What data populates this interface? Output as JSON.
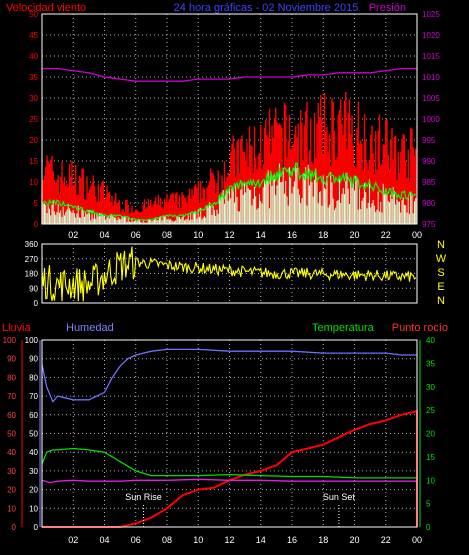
{
  "colors": {
    "background": "#000000",
    "frame": "#ffffff",
    "grid": "#b0b0b0",
    "wind_gust": "#ff0000",
    "wind_avg": "#00ff00",
    "wind_min": "#d8ffd8",
    "pressure": "#d000d0",
    "direction": "#ffff00",
    "rain": "#ff0000",
    "humidity": "#7070ff",
    "temperature": "#00e000",
    "dewpoint": "#e020e0",
    "humidity_axis": "#8080ff",
    "temp_axis": "#00e000",
    "dir_letters": "#ffff00",
    "markers": "#ffffff"
  },
  "header": {
    "wind_title": "Velocidad viento",
    "center_title": "24 hora gráficas - 02 Noviembre 2015",
    "pressure_title": "Presión"
  },
  "bottom_header": {
    "rain": "Lluvia",
    "humidity": "Humedad",
    "temperature": "Temperatura",
    "dewpoint": "Punto rocío"
  },
  "direction_letters": [
    "N",
    "W",
    "S",
    "E",
    "N"
  ],
  "markers": {
    "sunrise": "Sun Rise",
    "sunset": "Sun Set"
  },
  "chart_data": [
    {
      "type": "line",
      "x_ticks": [
        "02",
        "04",
        "06",
        "08",
        "10",
        "12",
        "14",
        "16",
        "18",
        "20",
        "22",
        "00"
      ],
      "left_axis": {
        "ticks": [
          "0",
          "5",
          "10",
          "15",
          "20",
          "25",
          "30",
          "35",
          "40",
          "45",
          "50"
        ],
        "ylim": [
          0,
          50
        ]
      },
      "right_axis": {
        "ticks": [
          "975",
          "980",
          "985",
          "990",
          "995",
          "1000",
          "1005",
          "1010",
          "1015",
          "1020",
          "1025"
        ],
        "ylim": [
          975,
          1025
        ]
      },
      "grid": true,
      "series": [
        {
          "key": "gust",
          "x": [
            0,
            1,
            2,
            3,
            4,
            5,
            6,
            7,
            8,
            9,
            10,
            11,
            12,
            13,
            14,
            15,
            16,
            17,
            18,
            19,
            20,
            21,
            22,
            23,
            24
          ],
          "values": [
            15,
            12,
            12,
            10,
            8,
            5,
            4,
            5,
            6,
            6,
            8,
            11,
            16,
            18,
            20,
            22,
            23,
            23,
            24,
            25,
            24,
            22,
            20,
            18,
            18
          ]
        },
        {
          "key": "average",
          "x": [
            0,
            1,
            2,
            3,
            4,
            5,
            6,
            7,
            8,
            9,
            10,
            11,
            12,
            13,
            14,
            15,
            16,
            17,
            18,
            19,
            20,
            21,
            22,
            23,
            24
          ],
          "values": [
            5,
            5,
            4,
            3,
            2,
            2,
            1,
            1,
            2,
            2,
            3,
            5,
            8,
            10,
            10,
            12,
            13,
            12,
            11,
            11,
            10,
            9,
            8,
            7,
            7
          ]
        },
        {
          "key": "pressure",
          "x": [
            0,
            1,
            2,
            3,
            4,
            5,
            6,
            7,
            8,
            9,
            10,
            11,
            12,
            13,
            14,
            15,
            16,
            17,
            18,
            19,
            20,
            21,
            22,
            23,
            24
          ],
          "values": [
            1012,
            1012,
            1011.5,
            1011,
            1010,
            1009.5,
            1009,
            1009,
            1009,
            1009,
            1009.5,
            1009.5,
            1009.5,
            1010,
            1010,
            1010,
            1010,
            1010.5,
            1010.5,
            1011,
            1011,
            1011,
            1011.5,
            1012,
            1012
          ]
        }
      ]
    },
    {
      "type": "scatter",
      "x_ticks": [
        "02",
        "04",
        "06",
        "08",
        "10",
        "12",
        "14",
        "16",
        "18",
        "20",
        "22",
        "00"
      ],
      "y_ticks": [
        "0",
        "90",
        "180",
        "270",
        "360"
      ],
      "ylim": [
        0,
        360
      ],
      "grid": true,
      "series": [
        {
          "key": "direction",
          "x": [
            0,
            1,
            2,
            3,
            4,
            5,
            6,
            7,
            8,
            9,
            10,
            11,
            12,
            13,
            14,
            15,
            16,
            17,
            18,
            19,
            20,
            21,
            22,
            23,
            24
          ],
          "values": [
            140,
            110,
            120,
            110,
            170,
            230,
            250,
            240,
            230,
            220,
            215,
            205,
            200,
            190,
            185,
            180,
            180,
            180,
            175,
            175,
            170,
            170,
            165,
            160,
            160
          ]
        }
      ]
    },
    {
      "type": "line",
      "x_ticks": [
        "02",
        "04",
        "06",
        "08",
        "10",
        "12",
        "14",
        "16",
        "18",
        "20",
        "22",
        "00"
      ],
      "rain_axis": {
        "ticks": [
          "0",
          "10",
          "20",
          "30",
          "40",
          "50",
          "60",
          "70",
          "80",
          "90",
          "100"
        ],
        "ylim": [
          0,
          100
        ]
      },
      "humidity_axis": {
        "ticks": [
          "0",
          "10",
          "20",
          "30",
          "40",
          "50",
          "60",
          "70",
          "80",
          "90",
          "100"
        ],
        "ylim": [
          0,
          100
        ]
      },
      "temperature_axis": {
        "ticks": [
          "0",
          "5",
          "10",
          "15",
          "20",
          "25",
          "30",
          "35",
          "40"
        ],
        "ylim": [
          0,
          40
        ]
      },
      "grid": true,
      "series": [
        {
          "key": "rain",
          "x": [
            0,
            1,
            2,
            3,
            4,
            5,
            6,
            7,
            8,
            9,
            10,
            11,
            12,
            13,
            14,
            15,
            16,
            17,
            18,
            19,
            20,
            21,
            22,
            23,
            24,
            24
          ],
          "values": [
            0,
            0,
            0,
            0,
            0,
            0,
            2,
            5,
            10,
            17,
            20,
            21,
            25,
            28,
            30,
            33,
            40,
            42,
            44,
            48,
            52,
            55,
            57,
            60,
            62,
            0
          ]
        },
        {
          "key": "humidity",
          "x": [
            0,
            0.3,
            0.7,
            1,
            2,
            3,
            3.5,
            4,
            4.5,
            5,
            5.5,
            6,
            7,
            8,
            10,
            12,
            14,
            16,
            18,
            20,
            22,
            23,
            24
          ],
          "values": [
            87,
            75,
            67,
            70,
            68,
            68,
            70,
            72,
            80,
            86,
            90,
            92,
            94,
            95,
            95,
            94,
            94,
            94,
            93,
            93,
            93,
            92,
            92
          ]
        },
        {
          "key": "temperature",
          "x": [
            0,
            0.3,
            0.7,
            1,
            2,
            3,
            4,
            5,
            6,
            7,
            8,
            10,
            12,
            14,
            16,
            18,
            20,
            22,
            24
          ],
          "values": [
            13.5,
            16,
            16.5,
            16.5,
            16.8,
            16.5,
            16,
            14,
            12,
            11,
            11,
            11,
            11.2,
            11,
            10.8,
            10.8,
            10.5,
            10.5,
            10.5
          ]
        },
        {
          "key": "dewpoint",
          "x": [
            0,
            0.5,
            1,
            2,
            3,
            4,
            5,
            6,
            8,
            10,
            12,
            14,
            16,
            18,
            20,
            22,
            24
          ],
          "values": [
            10,
            9.5,
            9.8,
            10,
            9.8,
            9.8,
            9.8,
            10,
            10,
            10.2,
            10,
            10,
            9.8,
            9.8,
            9.8,
            9.8,
            9.8
          ]
        }
      ],
      "sun_marker_hours": [
        6.5,
        19
      ]
    }
  ]
}
